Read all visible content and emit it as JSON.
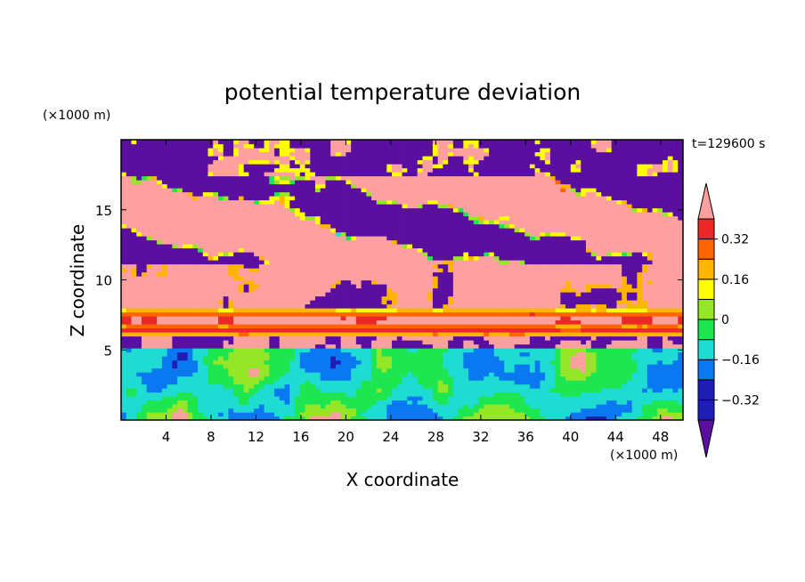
{
  "chart_data": {
    "type": "heatmap",
    "title": "potential temperature deviation",
    "xlabel": "X coordinate",
    "ylabel": "Z coordinate",
    "x_unit": "(×1000 m)",
    "y_unit": "(×1000 m)",
    "time_label": "t=129600 s",
    "xlim": [
      0,
      50
    ],
    "ylim": [
      0,
      20
    ],
    "x_ticks": [
      4,
      8,
      12,
      16,
      20,
      24,
      28,
      32,
      36,
      40,
      44,
      48
    ],
    "x_tick_labels": [
      "4",
      "8",
      "12",
      "16",
      "20",
      "24",
      "28",
      "32",
      "36",
      "40",
      "44",
      "48"
    ],
    "y_ticks": [
      5,
      10,
      15
    ],
    "y_tick_labels": [
      "5",
      "10",
      "15"
    ],
    "colorbar": {
      "levels": [
        -0.4,
        -0.32,
        -0.24,
        -0.16,
        -0.08,
        0,
        0.08,
        0.16,
        0.24,
        0.32,
        0.4
      ],
      "tick_values": [
        0.32,
        0.16,
        0,
        -0.16,
        -0.32
      ],
      "tick_labels": [
        "0.32",
        "0.16",
        "0",
        "−0.16",
        "−0.32"
      ],
      "colors_low_to_high": [
        "#5a0fa0",
        "#1e1eb4",
        "#0a78f0",
        "#1edcd2",
        "#1ee650",
        "#96e628",
        "#ffff00",
        "#ffb400",
        "#ff6400",
        "#eb2828",
        "#ffa0a0"
      ],
      "extend": "both"
    },
    "bands": [
      {
        "z_range": [
          17.5,
          20
        ],
        "dominant": "#5a0fa0",
        "secondary": "#ffa0a0"
      },
      {
        "z_range": [
          11,
          17.5
        ],
        "dominant": "#ffa0a0",
        "secondary": "#5a0fa0"
      },
      {
        "z_range": [
          8,
          11
        ],
        "dominant": "#ffa0a0",
        "secondary": "#5a0fa0"
      },
      {
        "z_range": [
          6,
          8
        ],
        "dominant": "#ff6400",
        "secondary": "#ffff00"
      },
      {
        "z_range": [
          5,
          6
        ],
        "dominant": "#5a0fa0",
        "secondary": "#ffa0a0"
      },
      {
        "z_range": [
          0,
          5
        ],
        "dominant": "#1edcd2",
        "secondary": "#1ee650"
      }
    ]
  }
}
